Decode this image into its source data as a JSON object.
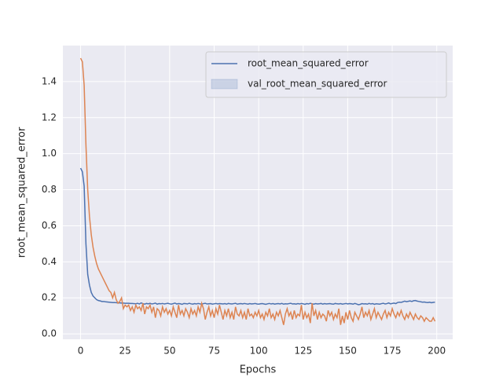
{
  "chart_data": {
    "type": "line",
    "xlabel": "Epochs",
    "ylabel": "root_mean_squared_error",
    "x": [
      0,
      1,
      2,
      3,
      4,
      5,
      6,
      7,
      8,
      9,
      10,
      11,
      12,
      13,
      14,
      15,
      16,
      17,
      18,
      19,
      20,
      21,
      22,
      23,
      24,
      25,
      26,
      27,
      28,
      29,
      30,
      31,
      32,
      33,
      34,
      35,
      36,
      37,
      38,
      39,
      40,
      41,
      42,
      43,
      44,
      45,
      46,
      47,
      48,
      49,
      50,
      51,
      52,
      53,
      54,
      55,
      56,
      57,
      58,
      59,
      60,
      61,
      62,
      63,
      64,
      65,
      66,
      67,
      68,
      69,
      70,
      71,
      72,
      73,
      74,
      75,
      76,
      77,
      78,
      79,
      80,
      81,
      82,
      83,
      84,
      85,
      86,
      87,
      88,
      89,
      90,
      91,
      92,
      93,
      94,
      95,
      96,
      97,
      98,
      99,
      100,
      101,
      102,
      103,
      104,
      105,
      106,
      107,
      108,
      109,
      110,
      111,
      112,
      113,
      114,
      115,
      116,
      117,
      118,
      119,
      120,
      121,
      122,
      123,
      124,
      125,
      126,
      127,
      128,
      129,
      130,
      131,
      132,
      133,
      134,
      135,
      136,
      137,
      138,
      139,
      140,
      141,
      142,
      143,
      144,
      145,
      146,
      147,
      148,
      149,
      150,
      151,
      152,
      153,
      154,
      155,
      156,
      157,
      158,
      159,
      160,
      161,
      162,
      163,
      164,
      165,
      166,
      167,
      168,
      169,
      170,
      171,
      172,
      173,
      174,
      175,
      176,
      177,
      178,
      179,
      180,
      181,
      182,
      183,
      184,
      185,
      186,
      187,
      188,
      189,
      190,
      191,
      192,
      193,
      194,
      195,
      196,
      197,
      198,
      199
    ],
    "series": [
      {
        "name": "root_mean_squared_error",
        "color": "#4c72b0",
        "values": [
          0.92,
          0.9,
          0.82,
          0.5,
          0.33,
          0.27,
          0.23,
          0.21,
          0.2,
          0.19,
          0.185,
          0.183,
          0.18,
          0.18,
          0.178,
          0.177,
          0.176,
          0.175,
          0.174,
          0.174,
          0.173,
          0.172,
          0.172,
          0.171,
          0.171,
          0.17,
          0.17,
          0.17,
          0.169,
          0.169,
          0.168,
          0.167,
          0.17,
          0.166,
          0.172,
          0.168,
          0.165,
          0.169,
          0.167,
          0.17,
          0.166,
          0.168,
          0.171,
          0.165,
          0.168,
          0.167,
          0.169,
          0.166,
          0.168,
          0.17,
          0.167,
          0.165,
          0.168,
          0.171,
          0.166,
          0.168,
          0.167,
          0.164,
          0.169,
          0.168,
          0.166,
          0.17,
          0.167,
          0.165,
          0.168,
          0.166,
          0.169,
          0.167,
          0.165,
          0.168,
          0.17,
          0.166,
          0.167,
          0.168,
          0.165,
          0.167,
          0.169,
          0.166,
          0.168,
          0.167,
          0.166,
          0.168,
          0.165,
          0.169,
          0.167,
          0.166,
          0.168,
          0.17,
          0.165,
          0.167,
          0.168,
          0.166,
          0.169,
          0.167,
          0.165,
          0.168,
          0.166,
          0.167,
          0.169,
          0.166,
          0.165,
          0.167,
          0.168,
          0.166,
          0.164,
          0.167,
          0.169,
          0.166,
          0.168,
          0.165,
          0.167,
          0.168,
          0.166,
          0.169,
          0.165,
          0.167,
          0.166,
          0.168,
          0.17,
          0.166,
          0.167,
          0.165,
          0.168,
          0.166,
          0.169,
          0.167,
          0.164,
          0.168,
          0.166,
          0.17,
          0.167,
          0.165,
          0.168,
          0.166,
          0.167,
          0.169,
          0.165,
          0.168,
          0.166,
          0.167,
          0.168,
          0.166,
          0.165,
          0.169,
          0.167,
          0.166,
          0.168,
          0.165,
          0.167,
          0.169,
          0.166,
          0.168,
          0.167,
          0.165,
          0.169,
          0.166,
          0.162,
          0.164,
          0.168,
          0.166,
          0.167,
          0.165,
          0.169,
          0.166,
          0.168,
          0.164,
          0.167,
          0.166,
          0.165,
          0.168,
          0.17,
          0.166,
          0.168,
          0.172,
          0.167,
          0.169,
          0.171,
          0.168,
          0.174,
          0.176,
          0.175,
          0.178,
          0.182,
          0.179,
          0.181,
          0.183,
          0.18,
          0.184,
          0.185,
          0.182,
          0.18,
          0.178,
          0.176,
          0.177,
          0.175,
          0.174,
          0.176,
          0.173,
          0.175,
          0.176
        ]
      },
      {
        "name": "val_root_mean_squared_error",
        "color": "#dd8452",
        "values": [
          1.53,
          1.51,
          1.38,
          1.05,
          0.8,
          0.65,
          0.55,
          0.48,
          0.43,
          0.39,
          0.36,
          0.34,
          0.32,
          0.3,
          0.28,
          0.26,
          0.24,
          0.23,
          0.2,
          0.23,
          0.19,
          0.17,
          0.18,
          0.2,
          0.14,
          0.16,
          0.15,
          0.16,
          0.13,
          0.15,
          0.12,
          0.16,
          0.14,
          0.15,
          0.13,
          0.17,
          0.11,
          0.15,
          0.14,
          0.16,
          0.12,
          0.15,
          0.09,
          0.14,
          0.13,
          0.1,
          0.15,
          0.12,
          0.14,
          0.11,
          0.13,
          0.1,
          0.15,
          0.12,
          0.09,
          0.16,
          0.11,
          0.13,
          0.1,
          0.14,
          0.12,
          0.09,
          0.14,
          0.11,
          0.13,
          0.1,
          0.15,
          0.12,
          0.17,
          0.14,
          0.08,
          0.12,
          0.15,
          0.1,
          0.13,
          0.09,
          0.14,
          0.11,
          0.16,
          0.12,
          0.08,
          0.13,
          0.1,
          0.14,
          0.09,
          0.12,
          0.08,
          0.15,
          0.11,
          0.1,
          0.13,
          0.09,
          0.12,
          0.08,
          0.14,
          0.1,
          0.11,
          0.09,
          0.12,
          0.1,
          0.13,
          0.09,
          0.11,
          0.08,
          0.12,
          0.1,
          0.14,
          0.09,
          0.11,
          0.08,
          0.12,
          0.1,
          0.13,
          0.09,
          0.05,
          0.11,
          0.14,
          0.1,
          0.12,
          0.08,
          0.13,
          0.09,
          0.11,
          0.1,
          0.16,
          0.08,
          0.12,
          0.09,
          0.11,
          0.06,
          0.17,
          0.1,
          0.13,
          0.08,
          0.12,
          0.09,
          0.11,
          0.1,
          0.07,
          0.13,
          0.1,
          0.12,
          0.08,
          0.11,
          0.09,
          0.14,
          0.05,
          0.1,
          0.06,
          0.12,
          0.08,
          0.13,
          0.09,
          0.07,
          0.12,
          0.1,
          0.08,
          0.11,
          0.15,
          0.09,
          0.12,
          0.1,
          0.13,
          0.08,
          0.11,
          0.14,
          0.09,
          0.12,
          0.1,
          0.08,
          0.11,
          0.13,
          0.09,
          0.12,
          0.1,
          0.14,
          0.11,
          0.09,
          0.12,
          0.1,
          0.13,
          0.1,
          0.08,
          0.11,
          0.09,
          0.12,
          0.1,
          0.08,
          0.11,
          0.09,
          0.08,
          0.1,
          0.09,
          0.07,
          0.09,
          0.08,
          0.07,
          0.07,
          0.09,
          0.07
        ]
      }
    ],
    "legend_handles": [
      "line",
      "patch"
    ],
    "xlim": [
      -9.95,
      208.95
    ],
    "ylim": [
      -0.03,
      1.6
    ],
    "xticks": [
      0,
      25,
      50,
      75,
      100,
      125,
      150,
      175,
      200
    ],
    "yticks": [
      {
        "value": 0,
        "label": "0.0"
      },
      0.2,
      0.4,
      0.6,
      0.8,
      {
        "value": 1,
        "label": "1.0"
      },
      1.2,
      1.4
    ],
    "grid": true,
    "legend": "upper right"
  }
}
